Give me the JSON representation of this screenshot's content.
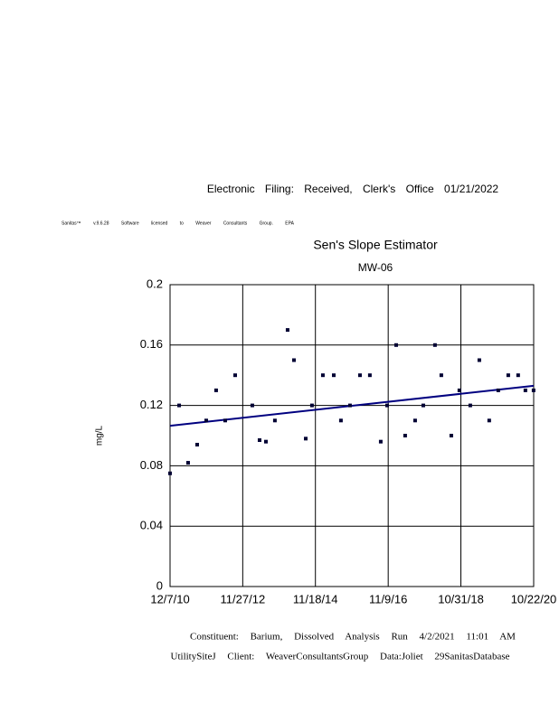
{
  "header": {
    "filing": "Electronic Filing: Received, Clerk's Office 01/21/2022",
    "license": "Sanitas™ v.9.6.28 Software licensed to Weaver Consultants Group. EPA"
  },
  "chart_data": {
    "type": "scatter",
    "title": "Sen's Slope Estimator",
    "subtitle": "MW-06",
    "y_label": "mg/L",
    "x": [
      "2010-12-07",
      "2011-03-07",
      "2011-06-04",
      "2011-09-02",
      "2011-12-01",
      "2012-03-08",
      "2012-06-06",
      "2012-09-13",
      "2013-03-02",
      "2013-05-13",
      "2013-07-15",
      "2013-10-12",
      "2014-02-15",
      "2014-04-19",
      "2014-08-14",
      "2014-10-15",
      "2015-01-31",
      "2015-05-19",
      "2015-07-29",
      "2015-10-27",
      "2016-02-03",
      "2016-05-11",
      "2016-08-27",
      "2016-10-29",
      "2017-01-27",
      "2017-04-26",
      "2017-08-03",
      "2017-10-23",
      "2018-02-16",
      "2018-04-20",
      "2018-07-28",
      "2018-10-16",
      "2019-02-01",
      "2019-05-02",
      "2019-08-08",
      "2019-11-06",
      "2020-02-13",
      "2020-05-21",
      "2020-08-01",
      "2020-10-21"
    ],
    "values": [
      0.075,
      0.12,
      0.082,
      0.094,
      0.11,
      0.13,
      0.11,
      0.14,
      0.12,
      0.097,
      0.096,
      0.11,
      0.17,
      0.15,
      0.098,
      0.12,
      0.14,
      0.14,
      0.11,
      0.12,
      0.14,
      0.14,
      0.096,
      0.12,
      0.16,
      0.1,
      0.11,
      0.12,
      0.16,
      0.14,
      0.1,
      0.13,
      0.12,
      0.15,
      0.11,
      0.13,
      0.14,
      0.14,
      0.13,
      0.13
    ],
    "color": "#000033",
    "trend": {
      "x": [
        "2010-12-07",
        "2020-10-22"
      ],
      "values": [
        0.1065,
        0.133
      ],
      "color": "#000080"
    },
    "xlim": [
      "2010-12-07",
      "2020-10-22"
    ],
    "xticks": [
      {
        "value": "2010-12-07",
        "label": "12/7/10"
      },
      {
        "value": "2012-11-27",
        "label": "11/27/12"
      },
      {
        "value": "2014-11-18",
        "label": "11/18/14"
      },
      {
        "value": "2016-11-09",
        "label": "11/9/16"
      },
      {
        "value": "2018-10-31",
        "label": "10/31/18"
      },
      {
        "value": "2020-10-22",
        "label": "10/22/20"
      }
    ],
    "ylim": [
      0,
      0.2
    ],
    "yticks": [
      0,
      0.04,
      0.08,
      0.12,
      0.16,
      0.2
    ],
    "grid": true
  },
  "footer": {
    "line1": "Constituent: Barium, Dissolved Analysis Run 4/2/2021 11:01 AM",
    "line2": "UtilitySiteJ Client: WeaverConsultantsGroup Data:Joliet 29SanitasDatabase"
  }
}
